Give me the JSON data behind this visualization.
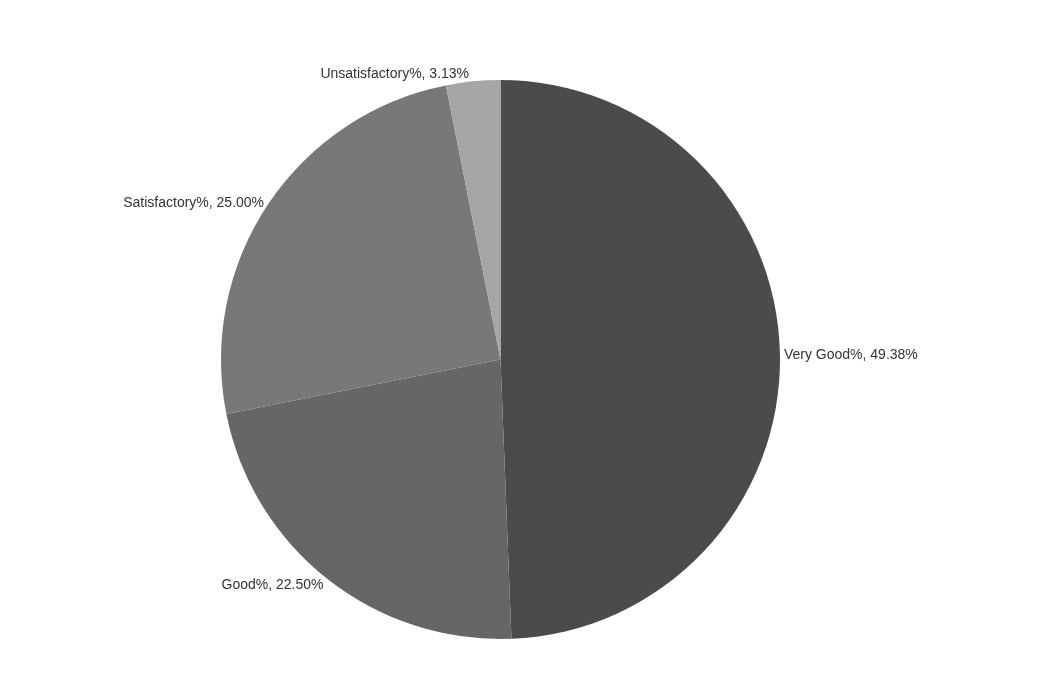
{
  "chart_data": {
    "type": "pie",
    "categories": [
      "Very Good%",
      "Good%",
      "Satisfactory%",
      "Unsatisfactory%"
    ],
    "values": [
      49.38,
      22.5,
      25.0,
      3.13
    ],
    "value_labels": [
      "49.38%",
      "22.50%",
      "25.00%",
      "3.13%"
    ],
    "colors": [
      "#4b4b4b",
      "#666666",
      "#787878",
      "#a6a6a6"
    ],
    "legend": false
  }
}
